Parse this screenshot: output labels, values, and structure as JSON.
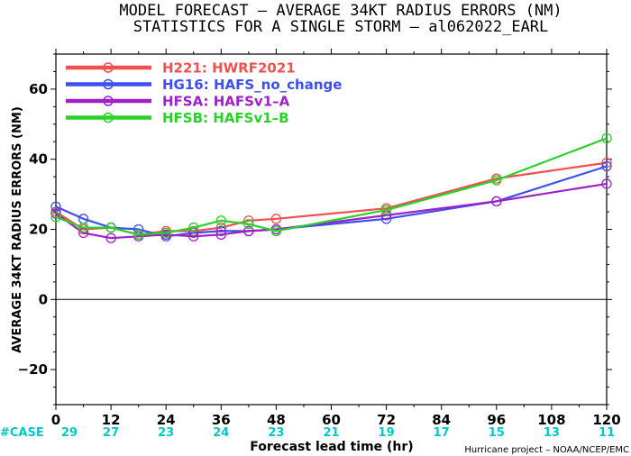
{
  "chart_data": {
    "type": "line",
    "title": "MODEL FORECAST – AVERAGE 34KT RADIUS ERRORS (NM)",
    "subtitle": "STATISTICS FOR A SINGLE STORM – al062022_EARL",
    "xlabel": "Forecast lead time (hr)",
    "ylabel": "AVERAGE 34KT RADIUS ERRORS (NM)",
    "xlim": [
      0,
      120
    ],
    "ylim": [
      -30,
      70
    ],
    "xticks": [
      0,
      12,
      24,
      36,
      48,
      60,
      72,
      84,
      96,
      108,
      120
    ],
    "yticks": [
      -20,
      0,
      20,
      40,
      60
    ],
    "zero_line": true,
    "grid": false,
    "legend_position": "top-left",
    "case_label": "#CASE",
    "case_label_color": "#00c8c8",
    "cases": [
      29,
      27,
      23,
      24,
      23,
      21,
      19,
      17,
      15,
      13,
      11
    ],
    "credit": "Hurricane project – NOAA/NCEP/EMC",
    "series": [
      {
        "name": "H221: HWRF2021",
        "color": "#f05050",
        "x": [
          0,
          6,
          12,
          18,
          24,
          30,
          36,
          42,
          48,
          72,
          96,
          120
        ],
        "y": [
          25,
          20,
          20.5,
          18.5,
          19.5,
          19.5,
          20.5,
          22.5,
          23,
          26,
          34.5,
          39
        ]
      },
      {
        "name": "HG16: HAFS_no_change",
        "color": "#3c50f0",
        "x": [
          0,
          6,
          12,
          18,
          24,
          30,
          36,
          42,
          48,
          72,
          96,
          120
        ],
        "y": [
          26.5,
          23,
          20.5,
          20,
          18,
          19,
          19.5,
          19.5,
          20,
          23,
          28,
          38
        ]
      },
      {
        "name": "HFSA: HAFSv1–A",
        "color": "#a020c8",
        "x": [
          0,
          6,
          12,
          18,
          24,
          30,
          36,
          42,
          48,
          72,
          96,
          120
        ],
        "y": [
          24.5,
          19,
          17.5,
          18,
          18.5,
          18,
          18.5,
          19.5,
          20,
          24,
          28,
          33
        ]
      },
      {
        "name": "HFSB: HAFSv1–B",
        "color": "#28d228",
        "x": [
          0,
          6,
          12,
          18,
          24,
          30,
          36,
          42,
          48,
          72,
          96,
          120
        ],
        "y": [
          23.5,
          20.5,
          20.5,
          18.5,
          19,
          20.5,
          22.5,
          21.5,
          19.5,
          25.5,
          34,
          46
        ]
      }
    ]
  }
}
